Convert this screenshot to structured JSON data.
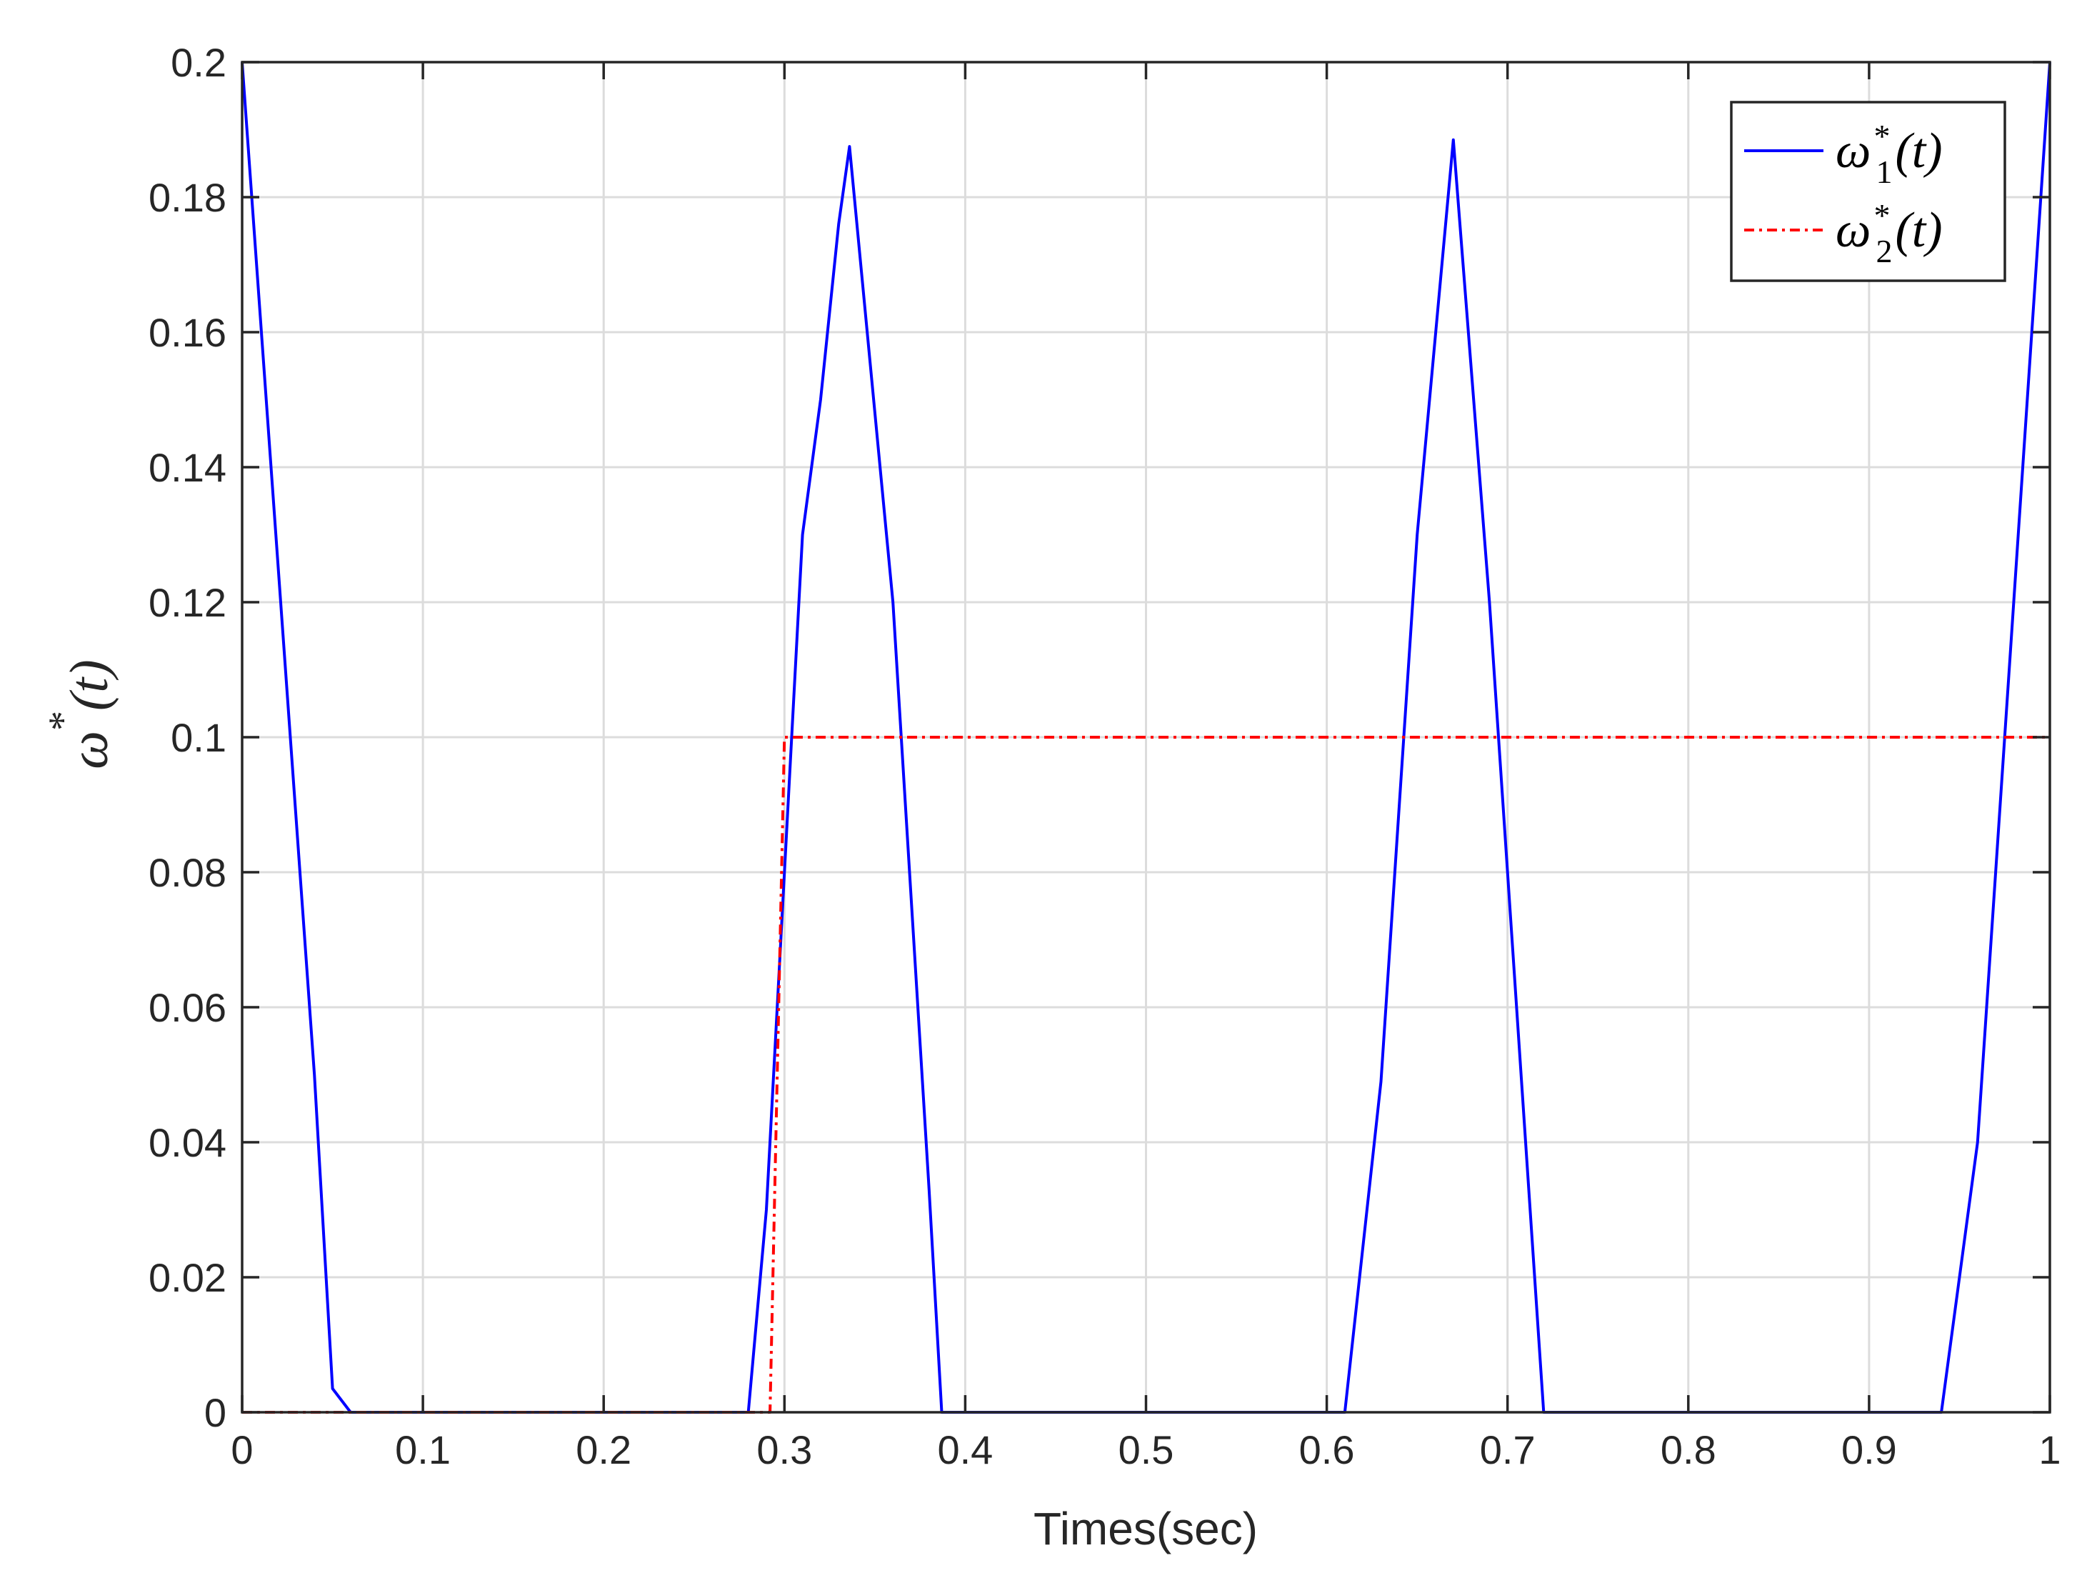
{
  "chart_data": {
    "type": "line",
    "xlabel": "Times(sec)",
    "ylabel": {
      "base": "ω",
      "sup": "*",
      "arg": "(t)"
    },
    "xlim": [
      0,
      1
    ],
    "ylim": [
      0,
      0.2
    ],
    "xticks": [
      0,
      0.1,
      0.2,
      0.3,
      0.4,
      0.5,
      0.6,
      0.7,
      0.8,
      0.9,
      1
    ],
    "xtick_labels": [
      "0",
      "0.1",
      "0.2",
      "0.3",
      "0.4",
      "0.5",
      "0.6",
      "0.7",
      "0.8",
      "0.9",
      "1"
    ],
    "yticks": [
      0,
      0.02,
      0.04,
      0.06,
      0.08,
      0.1,
      0.12,
      0.14,
      0.16,
      0.18,
      0.2
    ],
    "ytick_labels": [
      "0",
      "0.02",
      "0.04",
      "0.06",
      "0.08",
      "0.1",
      "0.12",
      "0.14",
      "0.16",
      "0.18",
      "0.2"
    ],
    "grid": true,
    "legend_position": "top-right",
    "series": [
      {
        "name": {
          "base": "ω",
          "sub": "1",
          "sup": "*",
          "arg": "(t)"
        },
        "color": "#0000ff",
        "style": "solid",
        "x": [
          0,
          0.04,
          0.05,
          0.06,
          0.28,
          0.29,
          0.3,
          0.31,
          0.32,
          0.33,
          0.336,
          0.36,
          0.38,
          0.387,
          0.61,
          0.63,
          0.65,
          0.67,
          0.69,
          0.72,
          0.94,
          0.96,
          0.98,
          1.0
        ],
        "y": [
          0.2,
          0.05,
          0.0035,
          0,
          0,
          0.03,
          0.08,
          0.13,
          0.15,
          0.176,
          0.1875,
          0.12,
          0.033,
          0,
          0,
          0.049,
          0.13,
          0.1885,
          0.12,
          0,
          0,
          0.04,
          0.12,
          0.2
        ]
      },
      {
        "name": {
          "base": "ω",
          "sub": "2",
          "sup": "*",
          "arg": "(t)"
        },
        "color": "#ff0000",
        "style": "dashdot",
        "x": [
          0,
          0.292,
          0.3,
          1.0
        ],
        "y": [
          0,
          0,
          0.1,
          0.1
        ]
      }
    ]
  }
}
